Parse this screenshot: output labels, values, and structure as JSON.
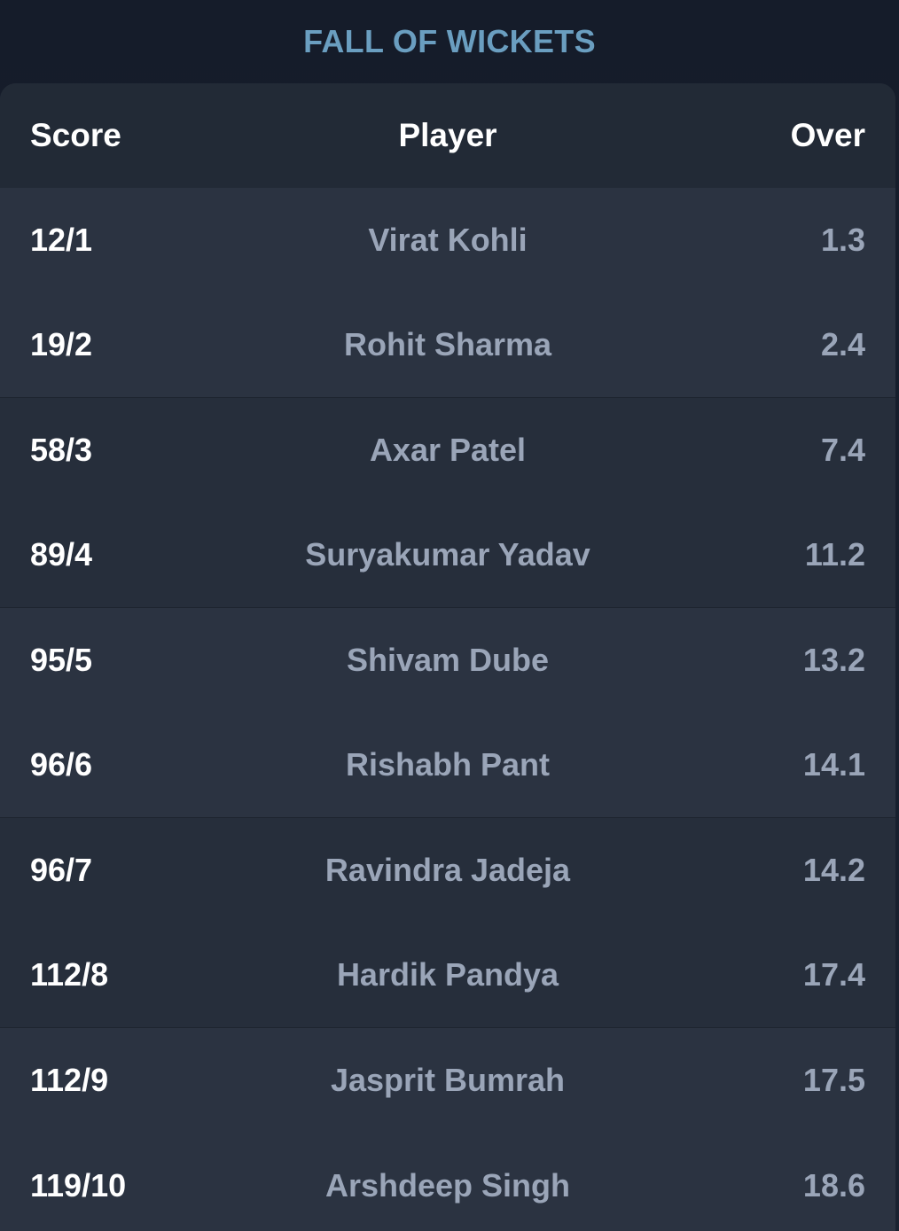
{
  "title": "FALL OF WICKETS",
  "columns": {
    "score": "Score",
    "player": "Player",
    "over": "Over"
  },
  "rows": [
    {
      "score": "12/1",
      "player": "Virat Kohli",
      "over": "1.3"
    },
    {
      "score": "19/2",
      "player": "Rohit Sharma",
      "over": "2.4"
    },
    {
      "score": "58/3",
      "player": "Axar Patel",
      "over": "7.4"
    },
    {
      "score": "89/4",
      "player": "Suryakumar Yadav",
      "over": "11.2"
    },
    {
      "score": "95/5",
      "player": "Shivam Dube",
      "over": "13.2"
    },
    {
      "score": "96/6",
      "player": "Rishabh Pant",
      "over": "14.1"
    },
    {
      "score": "96/7",
      "player": "Ravindra Jadeja",
      "over": "14.2"
    },
    {
      "score": "112/8",
      "player": "Hardik Pandya",
      "over": "17.4"
    },
    {
      "score": "112/9",
      "player": "Jasprit Bumrah",
      "over": "17.5"
    },
    {
      "score": "119/10",
      "player": "Arshdeep Singh",
      "over": "18.6"
    }
  ],
  "colors": {
    "title": "#6a9ec0",
    "background": "#151c2a",
    "card": "#262e3b",
    "header": "#222a36",
    "row_alt": "#2b3341",
    "text_primary": "#ffffff",
    "text_secondary": "#9aa5b8"
  }
}
